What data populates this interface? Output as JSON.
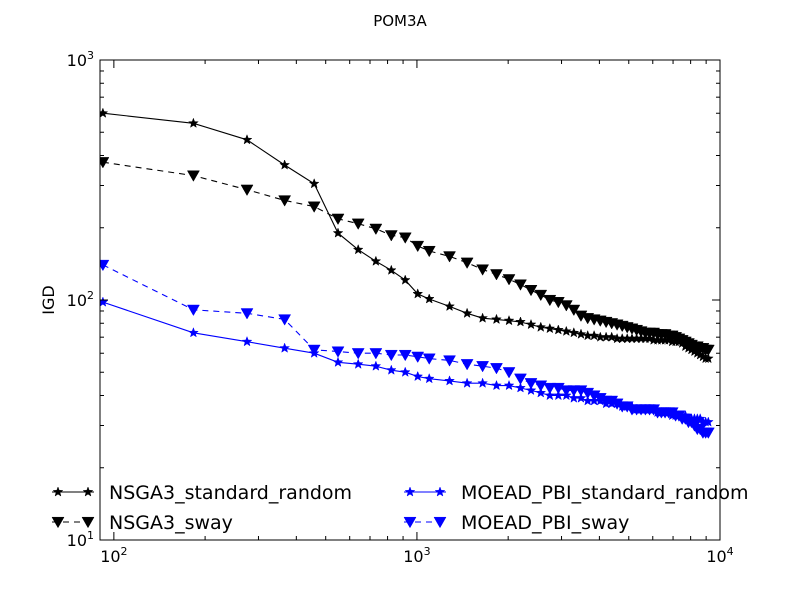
{
  "chart_data": {
    "type": "line",
    "title": "POM3A",
    "xlabel": "",
    "ylabel": "IGD",
    "xscale": "log",
    "yscale": "log",
    "xlim": [
      90,
      10000
    ],
    "ylim": [
      10,
      1000
    ],
    "x_ticks": [
      {
        "base": "10",
        "exp": "2",
        "value": 100
      },
      {
        "base": "10",
        "exp": "3",
        "value": 1000
      },
      {
        "base": "10",
        "exp": "4",
        "value": 10000
      }
    ],
    "y_ticks": [
      {
        "base": "10",
        "exp": "1",
        "value": 10
      },
      {
        "base": "10",
        "exp": "2",
        "value": 100
      },
      {
        "base": "10",
        "exp": "3",
        "value": 1000
      }
    ],
    "legend_placement": "lower-center, two columns",
    "series": [
      {
        "name": "NSGA3_standard_random",
        "color": "#000000",
        "dash": "solid",
        "marker": "star",
        "x": [
          92,
          183,
          275,
          366,
          458,
          549,
          640,
          732,
          823,
          915,
          1006,
          1098,
          1281,
          1464,
          1647,
          1830,
          2013,
          2196,
          2379,
          2562,
          2745,
          2928,
          3111,
          3294,
          3477,
          3660,
          3843,
          4026,
          4209,
          4392,
          4575,
          4758,
          4941,
          5124,
          5307,
          5490,
          5673,
          5856,
          6039,
          6222,
          6405,
          6588,
          6771,
          6954,
          7137,
          7320,
          7503,
          7686,
          7869,
          8052,
          8235,
          8418,
          8601,
          8784,
          8967,
          9150
        ],
        "y": [
          600,
          545,
          465,
          365,
          305,
          190,
          162,
          145,
          133,
          121,
          106,
          101,
          94,
          88,
          84,
          83,
          82,
          81,
          79,
          77,
          76,
          75,
          74,
          73,
          72,
          71,
          71,
          70,
          70,
          70,
          69,
          69,
          69,
          69,
          69,
          69,
          69,
          69,
          68,
          68,
          68,
          68,
          68,
          67,
          67,
          67,
          66,
          64,
          63,
          62,
          61,
          60,
          59,
          58,
          57,
          57
        ]
      },
      {
        "name": "NSGA3_sway",
        "color": "#000000",
        "dash": "dashed",
        "marker": "triangle-down",
        "x": [
          92,
          183,
          275,
          366,
          458,
          549,
          640,
          732,
          823,
          915,
          1006,
          1098,
          1281,
          1464,
          1647,
          1830,
          2013,
          2196,
          2379,
          2562,
          2745,
          2928,
          3111,
          3294,
          3477,
          3660,
          3843,
          4026,
          4209,
          4392,
          4575,
          4758,
          4941,
          5124,
          5307,
          5490,
          5673,
          5856,
          6039,
          6222,
          6405,
          6588,
          6771,
          6954,
          7137,
          7320,
          7503,
          7686,
          7869,
          8052,
          8235,
          8418,
          8601,
          8784,
          8967,
          9150
        ],
        "y": [
          375,
          330,
          288,
          260,
          245,
          218,
          208,
          198,
          186,
          182,
          168,
          160,
          152,
          143,
          134,
          128,
          122,
          116,
          110,
          105,
          100,
          98,
          95,
          91,
          86,
          84,
          83,
          82,
          81,
          80,
          79,
          78,
          77,
          76,
          75,
          74,
          73,
          73,
          73,
          72,
          72,
          72,
          71,
          71,
          70,
          69,
          68,
          67,
          66,
          65,
          64,
          64,
          63,
          63,
          62,
          62
        ]
      },
      {
        "name": "MOEAD_PBI_standard_random",
        "color": "#0000ff",
        "dash": "solid",
        "marker": "star",
        "x": [
          92,
          183,
          275,
          366,
          458,
          549,
          640,
          732,
          823,
          915,
          1006,
          1098,
          1281,
          1464,
          1647,
          1830,
          2013,
          2196,
          2379,
          2562,
          2745,
          2928,
          3111,
          3294,
          3477,
          3660,
          3843,
          4026,
          4209,
          4392,
          4575,
          4758,
          4941,
          5124,
          5307,
          5490,
          5673,
          5856,
          6039,
          6222,
          6405,
          6588,
          6771,
          6954,
          7137,
          7320,
          7503,
          7686,
          7869,
          8052,
          8235,
          8418,
          8601,
          8784,
          8967,
          9150
        ],
        "y": [
          98,
          73,
          67,
          63,
          60,
          55,
          54,
          53,
          51,
          50,
          48,
          47,
          46,
          45,
          45,
          44,
          44,
          43,
          42,
          41,
          40,
          40,
          40,
          39,
          39,
          38,
          38,
          38,
          37,
          37,
          37,
          36,
          36,
          36,
          35,
          35,
          35,
          35,
          35,
          34,
          34,
          34,
          34,
          33,
          33,
          33,
          33,
          33,
          32,
          32,
          32,
          32,
          32,
          31,
          31,
          31
        ]
      },
      {
        "name": "MOEAD_PBI_sway",
        "color": "#0000ff",
        "dash": "dashed",
        "marker": "triangle-down",
        "x": [
          92,
          183,
          275,
          366,
          458,
          549,
          640,
          732,
          823,
          915,
          1006,
          1098,
          1281,
          1464,
          1647,
          1830,
          2013,
          2196,
          2379,
          2562,
          2745,
          2928,
          3111,
          3294,
          3477,
          3660,
          3843,
          4026,
          4209,
          4392,
          4575,
          4758,
          4941,
          5124,
          5307,
          5490,
          5673,
          5856,
          6039,
          6222,
          6405,
          6588,
          6771,
          6954,
          7137,
          7320,
          7503,
          7686,
          7869,
          8052,
          8235,
          8418,
          8601,
          8784,
          8967,
          9150
        ],
        "y": [
          140,
          91,
          88,
          83,
          62,
          61,
          60,
          60,
          59,
          59,
          58,
          57,
          56,
          54,
          53,
          52,
          50,
          47,
          45,
          44,
          43,
          43,
          42,
          42,
          42,
          41,
          40,
          39,
          38,
          38,
          37,
          36,
          36,
          35,
          35,
          35,
          35,
          35,
          35,
          34,
          34,
          34,
          34,
          34,
          33,
          33,
          32,
          32,
          31,
          31,
          30,
          29,
          29,
          28,
          28,
          28
        ]
      }
    ]
  }
}
